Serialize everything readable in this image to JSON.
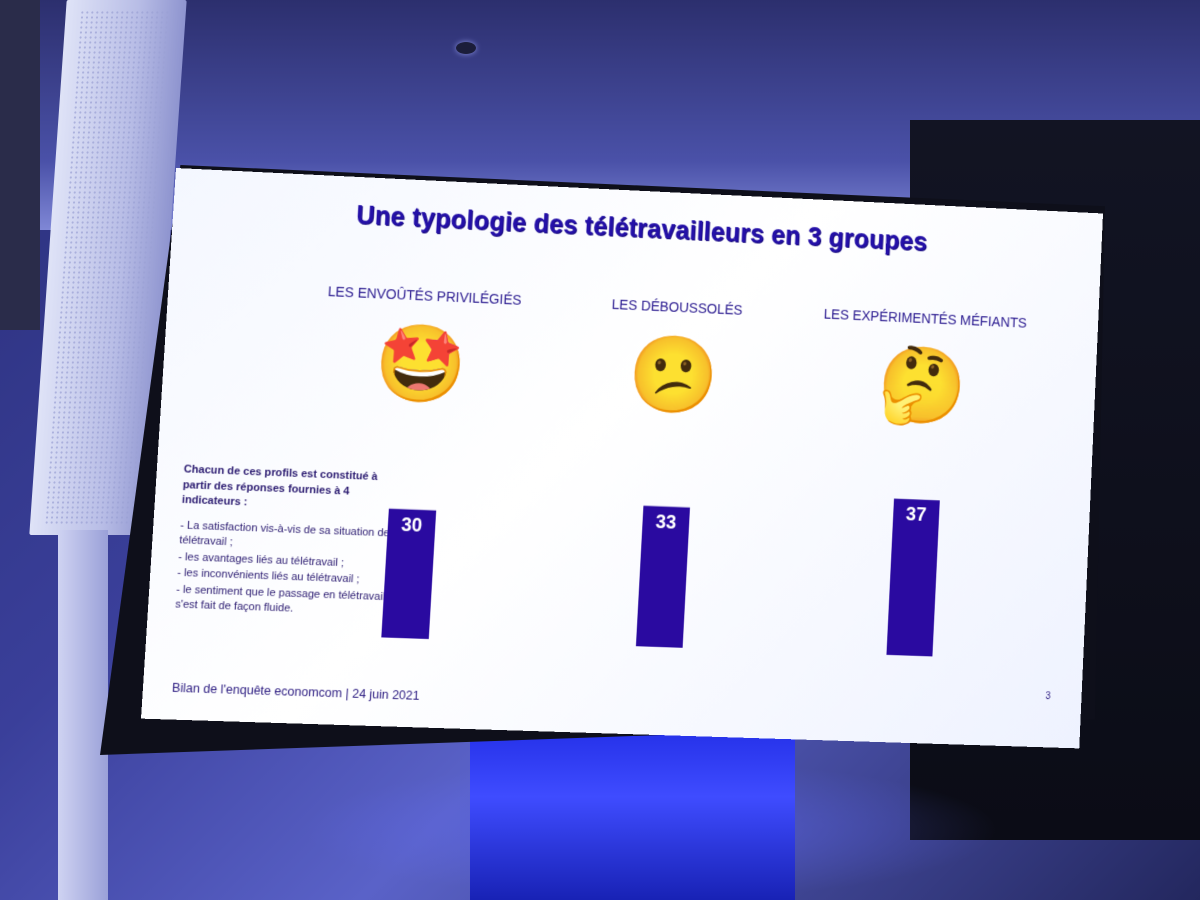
{
  "slide": {
    "title": "Une typologie des télétravailleurs en 3 groupes",
    "footer": "Bilan de l'enquête economcom | 24 juin 2021",
    "page_number": "3"
  },
  "groups": [
    {
      "label": "LES ENVOÛTÉS PRIVILÉGIÉS",
      "emoji": "🤩",
      "icon": "star-struck-emoji"
    },
    {
      "label": "LES DÉBOUSSOLÉS",
      "emoji": "😕",
      "icon": "confused-face-emoji"
    },
    {
      "label": "LES EXPÉRIMENTÉS MÉFIANTS",
      "emoji": "🤔",
      "icon": "thinking-face-emoji"
    }
  ],
  "side_note": {
    "intro": "Chacun de ces profils est constitué à partir des réponses fournies à 4 indicateurs :",
    "items": [
      "- La satisfaction vis-à-vis de sa situation de télétravail ;",
      "- les avantages liés au télétravail ;",
      "- les inconvénients liés au télétravail ;",
      "- le sentiment que le passage en télétravail s'est fait de façon fluide."
    ]
  },
  "chart_data": {
    "type": "bar",
    "categories": [
      "LES ENVOÛTÉS PRIVILÉGIÉS",
      "LES DÉBOUSSOLÉS",
      "LES EXPÉRIMENTÉS MÉFIANTS"
    ],
    "values": [
      30,
      33,
      37
    ],
    "value_labels": [
      "30",
      "33",
      "37"
    ],
    "bar_color": "#2a0aa0",
    "label_color": "#ffffff",
    "ylim": [
      0,
      40
    ],
    "grid": false,
    "legend": false
  },
  "colors": {
    "title": "#2410a8",
    "text": "#2a1a80",
    "slide_bg": "#f7f9ff"
  }
}
